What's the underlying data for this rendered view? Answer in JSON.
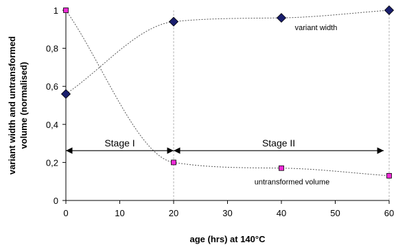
{
  "chart_data": {
    "type": "scatter",
    "title": "",
    "xlabel": "age (hrs) at 140°C",
    "ylabel_lines": [
      "variant width and untransformed",
      "volume (normalised)"
    ],
    "xlim": [
      0,
      60
    ],
    "ylim": [
      0,
      1
    ],
    "x_ticks": [
      0,
      10,
      20,
      30,
      40,
      50,
      60
    ],
    "y_ticks": [
      {
        "value": 0,
        "label": "0"
      },
      {
        "value": 0.2,
        "label": "0,2"
      },
      {
        "value": 0.4,
        "label": "0,4"
      },
      {
        "value": 0.6,
        "label": "0,6"
      },
      {
        "value": 0.8,
        "label": "0,8"
      },
      {
        "value": 1,
        "label": "1"
      }
    ],
    "grid": false,
    "legend": "none",
    "series": [
      {
        "name": "variant width",
        "marker": "diamond",
        "color": "#1a1f6e",
        "x": [
          0,
          20,
          40,
          60
        ],
        "y": [
          0.56,
          0.94,
          0.96,
          1.0
        ]
      },
      {
        "name": "untransformed volume",
        "marker": "square",
        "color": "#ee2bd6",
        "x": [
          0,
          20,
          40,
          60
        ],
        "y": [
          1.0,
          0.2,
          0.17,
          0.13
        ]
      }
    ],
    "series_label_positions": [
      {
        "x": 42.5,
        "y": 0.895
      },
      {
        "x": 35,
        "y": 0.085
      }
    ],
    "stages": [
      {
        "label": "Stage I",
        "x_start": 0,
        "x_end": 20
      },
      {
        "label": "Stage II",
        "x_start": 20,
        "x_end": 59
      }
    ],
    "stage_arrow_y": 0.262,
    "stage_label_y": 0.285,
    "reference_lines_x": [
      20,
      60
    ]
  }
}
